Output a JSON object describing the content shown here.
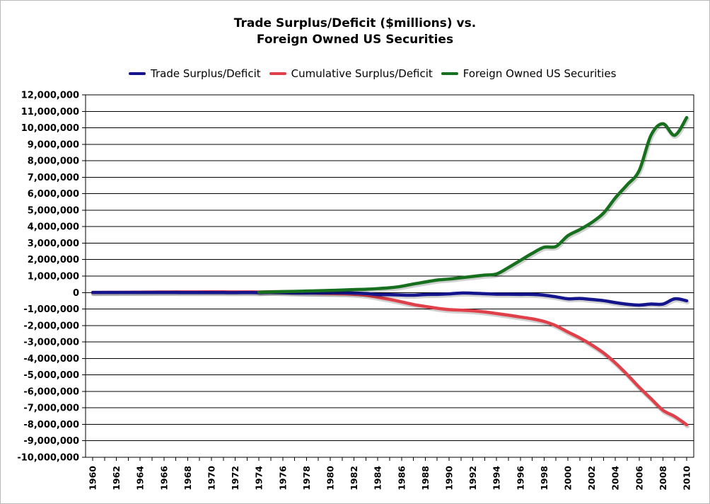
{
  "chart_data": {
    "type": "line",
    "title": [
      "Trade Surplus/Deficit ($millions) vs.",
      "Foreign Owned US Securities"
    ],
    "xlabel": "",
    "ylabel": "",
    "xlim": [
      1960,
      2010
    ],
    "ylim": [
      -10000000,
      12000000
    ],
    "y_ticks": [
      {
        "value": 12000000,
        "label": "12,000,000"
      },
      {
        "value": 11000000,
        "label": "11,000,000"
      },
      {
        "value": 10000000,
        "label": "10,000,000"
      },
      {
        "value": 9000000,
        "label": "9,000,000"
      },
      {
        "value": 8000000,
        "label": "8,000,000"
      },
      {
        "value": 7000000,
        "label": "7,000,000"
      },
      {
        "value": 6000000,
        "label": "6,000,000"
      },
      {
        "value": 5000000,
        "label": "5,000,000"
      },
      {
        "value": 4000000,
        "label": "4,000,000"
      },
      {
        "value": 3000000,
        "label": "3,000,000"
      },
      {
        "value": 2000000,
        "label": "2,000,000"
      },
      {
        "value": 1000000,
        "label": "1,000,000"
      },
      {
        "value": 0,
        "label": "0"
      },
      {
        "value": -1000000,
        "label": "-1,000,000"
      },
      {
        "value": -2000000,
        "label": "-2,000,000"
      },
      {
        "value": -3000000,
        "label": "-3,000,000"
      },
      {
        "value": -4000000,
        "label": "-4,000,000"
      },
      {
        "value": -5000000,
        "label": "-5,000,000"
      },
      {
        "value": -6000000,
        "label": "-6,000,000"
      },
      {
        "value": -7000000,
        "label": "-7,000,000"
      },
      {
        "value": -8000000,
        "label": "-8,000,000"
      },
      {
        "value": -9000000,
        "label": "-9,000,000"
      },
      {
        "value": -10000000,
        "label": "-10,000,000"
      }
    ],
    "x_ticks": [
      {
        "value": 1960,
        "label": "1960"
      },
      {
        "value": 1962,
        "label": "1962"
      },
      {
        "value": 1964,
        "label": "1964"
      },
      {
        "value": 1966,
        "label": "1966"
      },
      {
        "value": 1968,
        "label": "1968"
      },
      {
        "value": 1970,
        "label": "1970"
      },
      {
        "value": 1972,
        "label": "1972"
      },
      {
        "value": 1974,
        "label": "1974"
      },
      {
        "value": 1976,
        "label": "1976"
      },
      {
        "value": 1978,
        "label": "1978"
      },
      {
        "value": 1980,
        "label": "1980"
      },
      {
        "value": 1982,
        "label": "1982"
      },
      {
        "value": 1984,
        "label": "1984"
      },
      {
        "value": 1986,
        "label": "1986"
      },
      {
        "value": 1988,
        "label": "1988"
      },
      {
        "value": 1990,
        "label": "1990"
      },
      {
        "value": 1992,
        "label": "1992"
      },
      {
        "value": 1994,
        "label": "1994"
      },
      {
        "value": 1996,
        "label": "1996"
      },
      {
        "value": 1998,
        "label": "1998"
      },
      {
        "value": 2000,
        "label": "2000"
      },
      {
        "value": 2002,
        "label": "2002"
      },
      {
        "value": 2004,
        "label": "2004"
      },
      {
        "value": 2006,
        "label": "2006"
      },
      {
        "value": 2008,
        "label": "2008"
      },
      {
        "value": 2010,
        "label": "2010"
      }
    ],
    "grid": true,
    "legend_position": "top",
    "series": [
      {
        "name": "Trade Surplus/Deficit",
        "color": "#14148c",
        "x": [
          1960,
          1961,
          1962,
          1963,
          1964,
          1965,
          1966,
          1967,
          1968,
          1969,
          1970,
          1971,
          1972,
          1973,
          1974,
          1975,
          1976,
          1977,
          1978,
          1979,
          1980,
          1981,
          1982,
          1983,
          1984,
          1985,
          1986,
          1987,
          1988,
          1989,
          1990,
          1991,
          1992,
          1993,
          1994,
          1995,
          1996,
          1997,
          1998,
          1999,
          2000,
          2001,
          2002,
          2003,
          2004,
          2005,
          2006,
          2007,
          2008,
          2009,
          2010
        ],
        "y": [
          4000,
          5000,
          4000,
          5000,
          7000,
          5000,
          4000,
          4000,
          1000,
          1000,
          3000,
          -1000,
          -5000,
          2000,
          -4000,
          12000,
          -6000,
          -27000,
          -30000,
          -24000,
          -19000,
          -16000,
          -30000,
          -60000,
          -120000,
          -130000,
          -150000,
          -160000,
          -120000,
          -110000,
          -80000,
          -30000,
          -40000,
          -70000,
          -100000,
          -100000,
          -110000,
          -110000,
          -160000,
          -260000,
          -380000,
          -360000,
          -420000,
          -490000,
          -610000,
          -710000,
          -760000,
          -700000,
          -700000,
          -380000,
          -500000
        ]
      },
      {
        "name": "Cumulative Surplus/Deficit",
        "color": "#e0404a",
        "x": [
          1960,
          1961,
          1962,
          1963,
          1964,
          1965,
          1966,
          1967,
          1968,
          1969,
          1970,
          1971,
          1972,
          1973,
          1974,
          1975,
          1976,
          1977,
          1978,
          1979,
          1980,
          1981,
          1982,
          1983,
          1984,
          1985,
          1986,
          1987,
          1988,
          1989,
          1990,
          1991,
          1992,
          1993,
          1994,
          1995,
          1996,
          1997,
          1998,
          1999,
          2000,
          2001,
          2002,
          2003,
          2004,
          2005,
          2006,
          2007,
          2008,
          2009,
          2010
        ],
        "y": [
          4000,
          9000,
          13000,
          18000,
          25000,
          30000,
          34000,
          38000,
          39000,
          40000,
          43000,
          42000,
          37000,
          39000,
          35000,
          47000,
          41000,
          14000,
          -16000,
          -40000,
          -59000,
          -75000,
          -105000,
          -165000,
          -285000,
          -415000,
          -565000,
          -725000,
          -845000,
          -955000,
          -1035000,
          -1065000,
          -1105000,
          -1175000,
          -1275000,
          -1375000,
          -1485000,
          -1595000,
          -1755000,
          -2015000,
          -2395000,
          -2755000,
          -3175000,
          -3665000,
          -4275000,
          -4985000,
          -5745000,
          -6445000,
          -7145000,
          -7525000,
          -8025000
        ]
      },
      {
        "name": "Foreign Owned US Securities",
        "color": "#16701e",
        "x": [
          1974,
          1975,
          1976,
          1977,
          1978,
          1979,
          1980,
          1981,
          1982,
          1983,
          1984,
          1985,
          1986,
          1987,
          1988,
          1989,
          1990,
          1991,
          1992,
          1993,
          1994,
          1995,
          1996,
          1997,
          1998,
          1999,
          2000,
          2001,
          2002,
          2003,
          2004,
          2005,
          2006,
          2007,
          2008,
          2009,
          2010
        ],
        "y": [
          20000,
          40000,
          60000,
          70000,
          90000,
          110000,
          130000,
          150000,
          180000,
          200000,
          240000,
          290000,
          380000,
          520000,
          640000,
          760000,
          820000,
          900000,
          980000,
          1060000,
          1130000,
          1520000,
          1950000,
          2380000,
          2750000,
          2800000,
          3450000,
          3820000,
          4250000,
          4820000,
          5750000,
          6550000,
          7400000,
          9550000,
          10250000,
          9550000,
          10620000
        ]
      }
    ]
  }
}
